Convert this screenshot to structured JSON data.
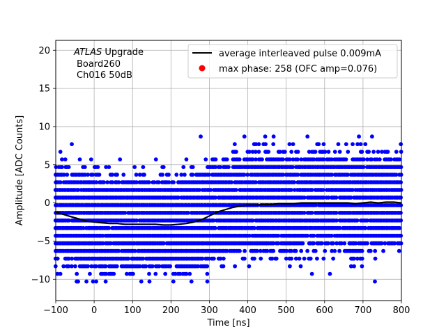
{
  "chart_data": {
    "type": "scatter",
    "xlabel": "Time [ns]",
    "ylabel": "Amplitude [ADC Counts]",
    "xlim": [
      -100,
      800
    ],
    "ylim": [
      -12.8,
      21.3
    ],
    "xticks": [
      -100,
      0,
      100,
      200,
      300,
      400,
      500,
      600,
      700,
      800
    ],
    "yticks": [
      -10,
      -5,
      0,
      5,
      10,
      15,
      20
    ],
    "grid": true,
    "legend_position": "upper-right",
    "annotation": {
      "line1_italic": "ATLAS",
      "line1_rest": " Upgrade",
      "line2": "Board260",
      "line3": "Ch016 50dB"
    },
    "series": [
      {
        "name": "average interleaved pulse 0.009mA",
        "type": "line",
        "color": "#000000",
        "x": [
          -100,
          -80,
          -60,
          -40,
          -20,
          0,
          20,
          40,
          60,
          80,
          100,
          120,
          140,
          160,
          180,
          200,
          220,
          240,
          260,
          280,
          300,
          320,
          340,
          360,
          380,
          400,
          420,
          440,
          460,
          480,
          500,
          520,
          540,
          560,
          580,
          600,
          620,
          640,
          660,
          680,
          700,
          720,
          740,
          760,
          780,
          800
        ],
        "y": [
          -1.2,
          -1.5,
          -1.8,
          -2.1,
          -2.4,
          -2.5,
          -2.6,
          -2.7,
          -2.7,
          -2.8,
          -2.8,
          -2.8,
          -2.8,
          -2.8,
          -2.9,
          -2.9,
          -2.8,
          -2.7,
          -2.5,
          -2.2,
          -1.7,
          -1.2,
          -0.9,
          -0.6,
          -0.4,
          -0.3,
          -0.3,
          -0.2,
          -0.2,
          -0.1,
          -0.1,
          -0.1,
          0.0,
          0.0,
          0.0,
          0.0,
          0.0,
          0.0,
          0.0,
          -0.1,
          0.0,
          0.1,
          0.0,
          0.1,
          0.1,
          0.0
        ]
      },
      {
        "name": "max phase: 258 (OFC amp=0.076)",
        "type": "scatter",
        "color": "#0000ff",
        "levels": [
          -10.3,
          -9.3,
          -8.3,
          -7.3,
          -6.3,
          -5.3,
          -4.3,
          -3.3,
          -2.3,
          -1.3,
          -0.3,
          0.7,
          1.7,
          2.7,
          3.7,
          4.7,
          5.7,
          6.7,
          7.7,
          8.7,
          9.7
        ],
        "x_range": [
          -100,
          800
        ],
        "x_spacing": 4.2
      },
      {
        "name": "max phase: 258 (OFC amp=0.076)",
        "type": "marker",
        "color": "#ff0000",
        "x": [
          258
        ],
        "y": [
          0.076
        ]
      }
    ]
  }
}
